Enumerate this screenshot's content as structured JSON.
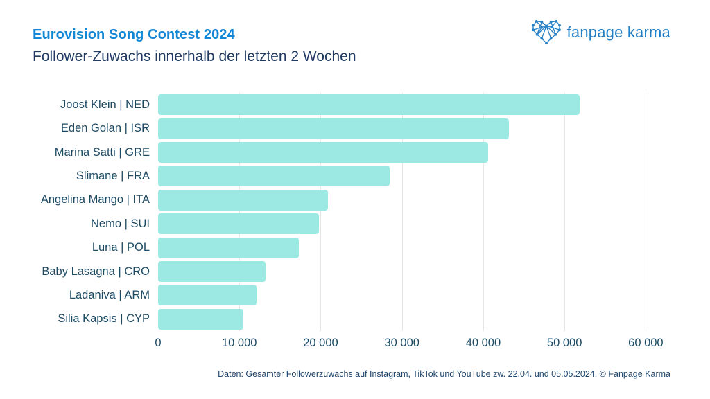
{
  "header": {
    "title": "Eurovision Song Contest 2024",
    "subtitle": "Follower-Zuwachs innerhalb der letzten 2 Wochen"
  },
  "logo": {
    "text": "fanpage karma",
    "icon": "polygon-heart-icon"
  },
  "footer": {
    "source_note": "Daten: Gesamter Followerzuwachs auf Instagram, TikTok und YouTube zw. 22.04. und 05.05.2024. © Fanpage Karma"
  },
  "colors": {
    "title_blue": "#1287d5",
    "logo_blue": "#1f7fc7",
    "heading_navy": "#203a61",
    "axis_text": "#1d4a63",
    "bar_fill": "#9ce8e2",
    "gridline": "#e5e7e7",
    "footer_navy": "#20456b"
  },
  "chart_data": {
    "type": "bar",
    "orientation": "horizontal",
    "title": "Eurovision Song Contest 2024",
    "subtitle": "Follower-Zuwachs innerhalb der letzten 2 Wochen",
    "categories": [
      "Joost Klein | NED",
      "Eden Golan | ISR",
      "Marina Satti | GRE",
      "Slimane | FRA",
      "Angelina Mango | ITA",
      "Nemo | SUI",
      "Luna | POL",
      "Baby Lasagna | CRO",
      "Ladaniva | ARM",
      "Silia Kapsis | CYP"
    ],
    "values": [
      51900,
      43200,
      40600,
      28500,
      20900,
      19800,
      17300,
      13200,
      12100,
      10500
    ],
    "xlabel": "",
    "ylabel": "",
    "xlim": [
      0,
      65000
    ],
    "xticks": [
      0,
      10000,
      20000,
      30000,
      40000,
      50000,
      60000
    ],
    "xtick_labels": [
      "0",
      "10 000",
      "20 000",
      "30 000",
      "40 000",
      "50 000",
      "60 000"
    ],
    "grid": "vertical-gridlines-at-xticks",
    "legend": "none",
    "bar_color": "#9ce8e2"
  }
}
